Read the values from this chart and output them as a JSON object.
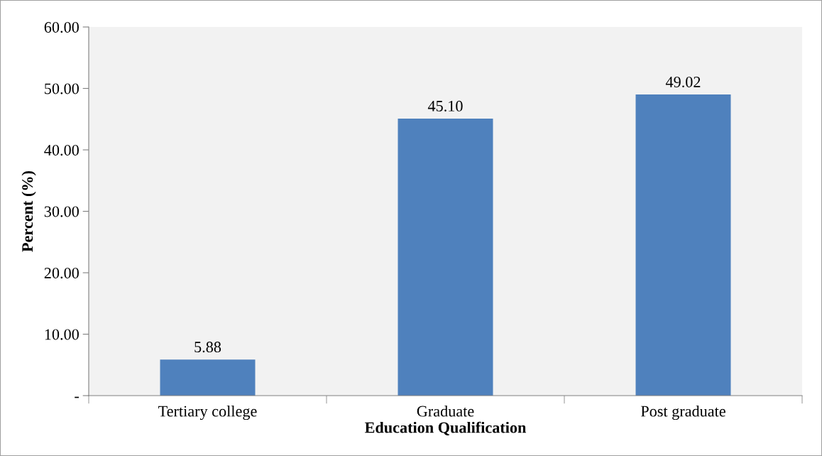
{
  "chart_data": {
    "type": "bar",
    "xlabel": "Education Qualification",
    "ylabel": "Percent (%)",
    "categories": [
      "Tertiary college",
      "Graduate",
      "Post graduate"
    ],
    "values": [
      5.88,
      45.1,
      49.02
    ],
    "value_labels": [
      "5.88",
      "45.10",
      "49.02"
    ],
    "color": "#4f81bd",
    "ylim": [
      0,
      60
    ],
    "yticks": [
      {
        "value": 0,
        "label": "-"
      },
      {
        "value": 10,
        "label": "10.00"
      },
      {
        "value": 20,
        "label": "20.00"
      },
      {
        "value": 30,
        "label": "30.00"
      },
      {
        "value": 40,
        "label": "40.00"
      },
      {
        "value": 50,
        "label": "50.00"
      },
      {
        "value": 60,
        "label": "60.00"
      }
    ],
    "grid": false
  }
}
